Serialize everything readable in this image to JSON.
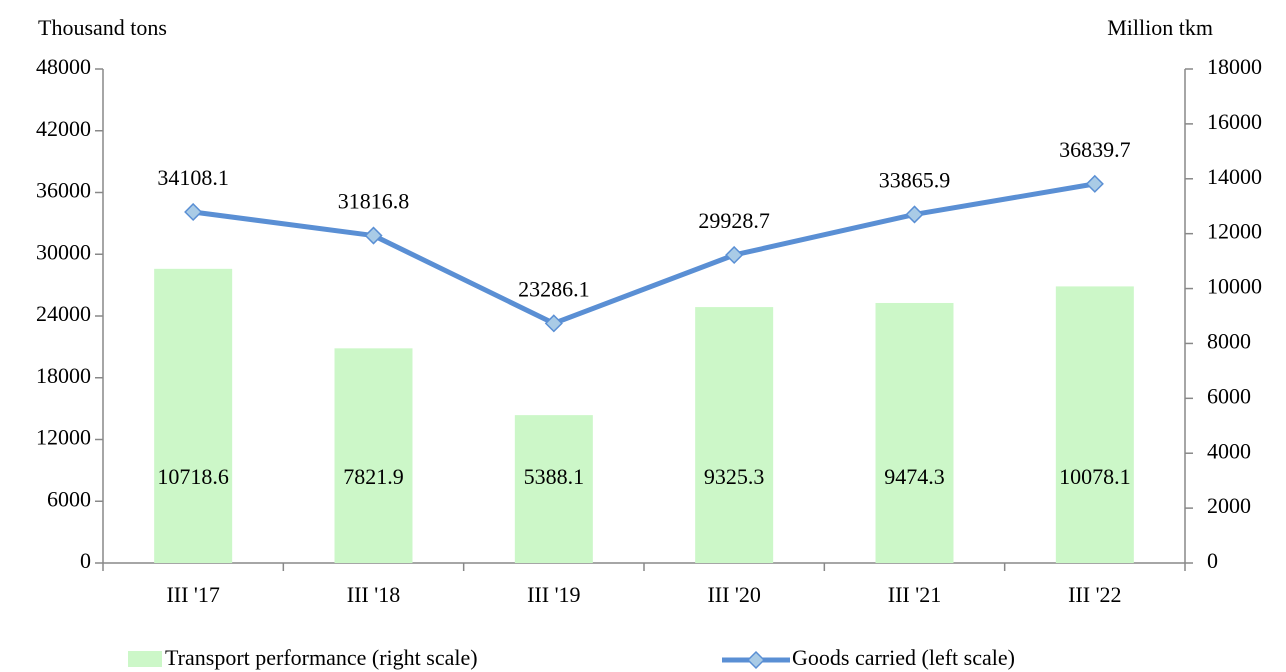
{
  "chart_data": {
    "type": "combo",
    "y_label": "Thousand tons",
    "y2_label": "Million tkm",
    "categories": [
      "III '17",
      "III '18",
      "III '19",
      "III '20",
      "III '21",
      "III '22"
    ],
    "series": [
      {
        "name": "Transport performance (right scale)",
        "type": "bar",
        "axis": "y2",
        "color": "#ccf7c8",
        "values": [
          10718.6,
          7821.9,
          5388.1,
          9325.3,
          9474.3,
          10078.1
        ]
      },
      {
        "name": "Goods carried (left scale)",
        "type": "line",
        "axis": "y",
        "color": "#5a8fd4",
        "marker_color": "#a9cbe6",
        "values": [
          34108.1,
          31816.8,
          23286.1,
          29928.7,
          33865.9,
          36839.7
        ]
      }
    ],
    "ylim": [
      0,
      48000
    ],
    "yticks": [
      0,
      6000,
      12000,
      18000,
      24000,
      30000,
      36000,
      42000,
      48000
    ],
    "y2lim": [
      0,
      18000
    ],
    "y2ticks": [
      0,
      2000,
      4000,
      6000,
      8000,
      10000,
      12000,
      14000,
      16000,
      18000
    ],
    "legend": "bottom"
  }
}
